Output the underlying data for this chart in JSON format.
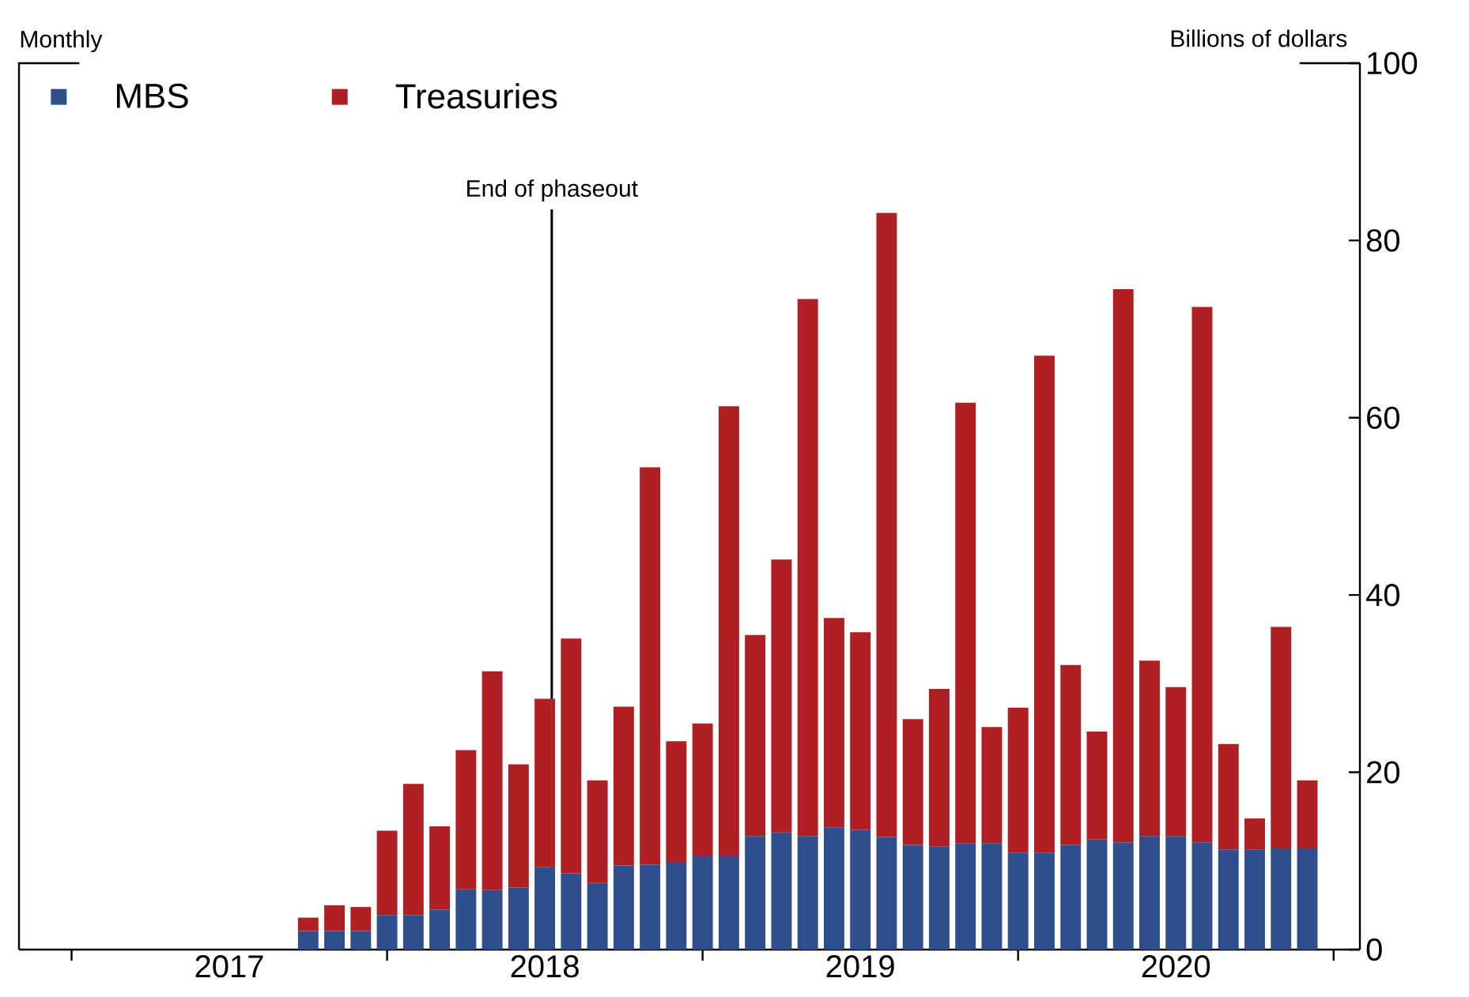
{
  "chart_data": {
    "type": "bar",
    "stacked": true,
    "x": [
      "2017-10",
      "2017-11",
      "2017-12",
      "2018-01",
      "2018-02",
      "2018-03",
      "2018-04",
      "2018-05",
      "2018-06",
      "2018-07",
      "2018-08",
      "2018-09",
      "2018-10",
      "2018-11",
      "2018-12",
      "2019-01",
      "2019-02",
      "2019-03",
      "2019-04",
      "2019-05",
      "2019-06",
      "2019-07",
      "2019-08",
      "2019-09",
      "2019-10",
      "2019-11",
      "2019-12",
      "2020-01",
      "2020-02",
      "2020-03",
      "2020-04",
      "2020-05",
      "2020-06",
      "2020-07",
      "2020-08",
      "2020-09",
      "2020-10",
      "2020-11",
      "2020-12"
    ],
    "series": [
      {
        "name": "MBS",
        "color": "#2e4e8c",
        "values": [
          2.1,
          2.1,
          2.1,
          3.9,
          3.9,
          4.5,
          6.8,
          6.7,
          7.0,
          9.3,
          8.6,
          7.5,
          9.5,
          9.6,
          9.9,
          10.6,
          10.6,
          12.8,
          13.2,
          12.8,
          13.8,
          13.5,
          12.7,
          11.8,
          11.6,
          12.0,
          12.0,
          10.9,
          10.9,
          11.8,
          12.4,
          12.1,
          12.8,
          12.8,
          12.1,
          11.3,
          11.3,
          11.4,
          11.4
        ]
      },
      {
        "name": "Treasuries",
        "color": "#b01f24",
        "values": [
          1.5,
          2.9,
          2.7,
          9.5,
          14.8,
          9.4,
          15.7,
          24.7,
          13.9,
          19.0,
          26.5,
          11.6,
          17.9,
          44.8,
          13.6,
          14.9,
          50.7,
          22.7,
          30.8,
          60.6,
          23.6,
          22.3,
          70.4,
          14.2,
          17.8,
          49.7,
          13.1,
          16.4,
          56.1,
          20.3,
          12.2,
          62.4,
          19.8,
          16.8,
          60.4,
          11.9,
          3.5,
          25.0,
          7.7
        ]
      }
    ],
    "xlim": [
      "2016-11",
      "2021-02"
    ],
    "xticks": [
      {
        "value": "2017-01",
        "label": null
      },
      {
        "value": "2017-07",
        "label": "2017"
      },
      {
        "value": "2018-01",
        "label": null
      },
      {
        "value": "2018-07",
        "label": "2018"
      },
      {
        "value": "2019-01",
        "label": null
      },
      {
        "value": "2019-07",
        "label": "2019"
      },
      {
        "value": "2020-01",
        "label": null
      },
      {
        "value": "2020-07",
        "label": "2020"
      },
      {
        "value": "2021-01",
        "label": null
      }
    ],
    "ylim": [
      0,
      100
    ],
    "yticks": [
      0,
      20,
      40,
      60,
      80,
      100
    ],
    "ylabel": "Billions of dollars",
    "annotations": [
      "Monthly"
    ],
    "ref_lines": [
      {
        "axis": "x",
        "value": "2018-07-09",
        "label": "End of phaseout",
        "color": "#000000"
      }
    ],
    "legend": "top left"
  }
}
